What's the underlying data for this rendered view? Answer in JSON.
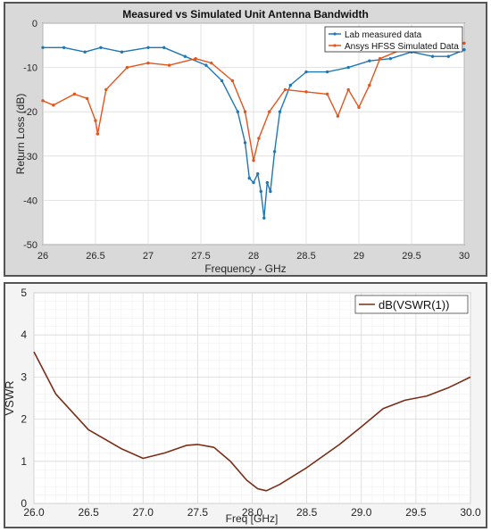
{
  "chart_data": [
    {
      "type": "line",
      "title": "Measured vs Simulated Unit Antenna Bandwidth",
      "xlabel": "Frequency - GHz",
      "ylabel": "Return Loss (dB)",
      "xlim": [
        26,
        30
      ],
      "ylim": [
        -50,
        0
      ],
      "xticks": [
        "26",
        "26.5",
        "27",
        "27.5",
        "28",
        "28.5",
        "29",
        "29.5",
        "30"
      ],
      "yticks": [
        "0",
        "-10",
        "-20",
        "-30",
        "-40",
        "-50"
      ],
      "grid": true,
      "legend_position": "top-right",
      "colors": {
        "lab": "#1f77b4",
        "hfss": "#e2561e"
      },
      "series": [
        {
          "name": "Lab measured data",
          "x": [
            26.0,
            26.2,
            26.4,
            26.55,
            26.75,
            27.0,
            27.15,
            27.35,
            27.55,
            27.7,
            27.85,
            27.92,
            27.96,
            28.0,
            28.04,
            28.07,
            28.1,
            28.13,
            28.16,
            28.2,
            28.25,
            28.35,
            28.5,
            28.7,
            28.9,
            29.1,
            29.3,
            29.5,
            29.7,
            29.85,
            30.0
          ],
          "y": [
            -5.5,
            -5.5,
            -6.5,
            -5.5,
            -6.5,
            -5.5,
            -5.5,
            -7.5,
            -9.5,
            -13,
            -20,
            -27,
            -35,
            -36,
            -34,
            -38,
            -44,
            -36,
            -38,
            -29,
            -20,
            -14,
            -11,
            -11,
            -10,
            -8.5,
            -8,
            -6.5,
            -7.5,
            -7.5,
            -6
          ]
        },
        {
          "name": "Ansys HFSS Simulated Data",
          "x": [
            26.0,
            26.1,
            26.3,
            26.42,
            26.5,
            26.52,
            26.6,
            26.8,
            27.0,
            27.2,
            27.45,
            27.6,
            27.8,
            27.92,
            28.0,
            28.05,
            28.15,
            28.3,
            28.5,
            28.7,
            28.8,
            28.9,
            29.0,
            29.1,
            29.2,
            29.4,
            29.6,
            29.8,
            30.0
          ],
          "y": [
            -17.5,
            -18.5,
            -16,
            -17,
            -22,
            -25,
            -15,
            -10,
            -9,
            -9.5,
            -8,
            -9,
            -13,
            -20,
            -31,
            -26,
            -20,
            -15,
            -15.5,
            -16,
            -21,
            -15,
            -19,
            -14,
            -8,
            -6,
            -6,
            -6,
            -4.5
          ]
        }
      ]
    },
    {
      "type": "line",
      "title": "",
      "xlabel": "Freq [GHz]",
      "ylabel": "VSWR",
      "xlim": [
        26,
        30
      ],
      "ylim": [
        0,
        5
      ],
      "xticks": [
        "26.0",
        "26.5",
        "27.0",
        "27.5",
        "28.0",
        "28.5",
        "29.0",
        "29.5",
        "30.0"
      ],
      "yticks": [
        "5",
        "4",
        "3",
        "2",
        "1",
        "0"
      ],
      "grid": true,
      "legend_position": "top-right",
      "colors": {
        "vswr": "#7a2e18"
      },
      "series": [
        {
          "name": "dB(VSWR(1))",
          "x": [
            26.0,
            26.2,
            26.5,
            26.8,
            27.0,
            27.2,
            27.4,
            27.5,
            27.65,
            27.8,
            27.95,
            28.05,
            28.13,
            28.25,
            28.5,
            28.8,
            29.0,
            29.2,
            29.4,
            29.6,
            29.8,
            30.0
          ],
          "y": [
            3.6,
            2.6,
            1.75,
            1.3,
            1.07,
            1.2,
            1.38,
            1.4,
            1.33,
            1.0,
            0.55,
            0.35,
            0.3,
            0.45,
            0.85,
            1.4,
            1.82,
            2.25,
            2.45,
            2.55,
            2.75,
            3.0
          ]
        }
      ]
    }
  ]
}
